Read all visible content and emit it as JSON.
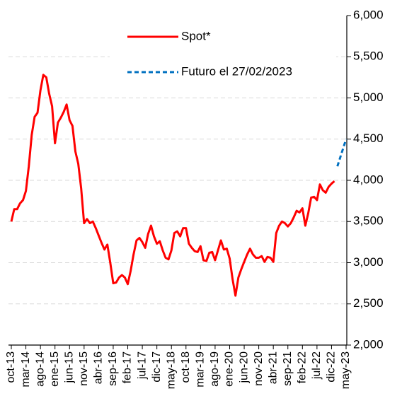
{
  "chart_data": {
    "type": "line",
    "categories": [
      "oct-13",
      null,
      null,
      null,
      null,
      "mar-14",
      null,
      null,
      null,
      null,
      "ago-14",
      null,
      null,
      null,
      null,
      "ene-15",
      null,
      null,
      null,
      null,
      "jun-15",
      null,
      null,
      null,
      null,
      "nov-15",
      null,
      null,
      null,
      null,
      "abr-16",
      null,
      null,
      null,
      null,
      "sep-16",
      null,
      null,
      null,
      null,
      "feb-17",
      null,
      null,
      null,
      null,
      "jul-17",
      null,
      null,
      null,
      null,
      "dic-17",
      null,
      null,
      null,
      null,
      "may-18",
      null,
      null,
      null,
      null,
      "oct-18",
      null,
      null,
      null,
      null,
      "mar-19",
      null,
      null,
      null,
      null,
      "ago-19",
      null,
      null,
      null,
      null,
      "ene-20",
      null,
      null,
      null,
      null,
      "jun-20",
      null,
      null,
      null,
      null,
      "nov-20",
      null,
      null,
      null,
      null,
      "abr-21",
      null,
      null,
      null,
      null,
      "sep-21",
      null,
      null,
      null,
      null,
      "feb-22",
      null,
      null,
      null,
      null,
      "jul-22",
      null,
      null,
      null,
      null,
      "dic-22",
      null,
      null,
      null,
      null,
      "may-23"
    ],
    "series": [
      {
        "name": "Spot*",
        "color": "#ff0000",
        "dashed": false,
        "values": [
          3500,
          3650,
          3650,
          3720,
          3760,
          3870,
          4170,
          4550,
          4770,
          4820,
          5090,
          5280,
          5250,
          5050,
          4900,
          4450,
          4700,
          4760,
          4830,
          4920,
          4730,
          4660,
          4350,
          4200,
          3900,
          3480,
          3530,
          3480,
          3500,
          3420,
          3330,
          3240,
          3160,
          3220,
          3000,
          2750,
          2760,
          2820,
          2850,
          2820,
          2740,
          2900,
          3100,
          3270,
          3300,
          3250,
          3180,
          3350,
          3450,
          3320,
          3230,
          3260,
          3150,
          3060,
          3040,
          3150,
          3360,
          3380,
          3320,
          3420,
          3420,
          3230,
          3180,
          3140,
          3130,
          3200,
          3030,
          3020,
          3120,
          3130,
          3030,
          3150,
          3270,
          3160,
          3170,
          3050,
          2800,
          2600,
          2820,
          2920,
          3010,
          3100,
          3170,
          3100,
          3060,
          3060,
          3080,
          3010,
          3070,
          3060,
          3010,
          3360,
          3450,
          3500,
          3480,
          3440,
          3480,
          3550,
          3630,
          3610,
          3660,
          3450,
          3600,
          3790,
          3800,
          3760,
          3950,
          3880,
          3850,
          3920,
          3960,
          3990,
          null,
          null,
          null,
          null
        ]
      },
      {
        "name": "Futuro el 27/02/2023",
        "color": "#0070c0",
        "dashed": true,
        "values": [
          null,
          null,
          null,
          null,
          null,
          null,
          null,
          null,
          null,
          null,
          null,
          null,
          null,
          null,
          null,
          null,
          null,
          null,
          null,
          null,
          null,
          null,
          null,
          null,
          null,
          null,
          null,
          null,
          null,
          null,
          null,
          null,
          null,
          null,
          null,
          null,
          null,
          null,
          null,
          null,
          null,
          null,
          null,
          null,
          null,
          null,
          null,
          null,
          null,
          null,
          null,
          null,
          null,
          null,
          null,
          null,
          null,
          null,
          null,
          null,
          null,
          null,
          null,
          null,
          null,
          null,
          null,
          null,
          null,
          null,
          null,
          null,
          null,
          null,
          null,
          null,
          null,
          null,
          null,
          null,
          null,
          null,
          null,
          null,
          null,
          null,
          null,
          null,
          null,
          null,
          null,
          null,
          null,
          null,
          null,
          null,
          null,
          null,
          null,
          null,
          null,
          null,
          null,
          null,
          null,
          null,
          null,
          null,
          null,
          null,
          null,
          null,
          4170,
          4280,
          4390,
          4500
        ]
      }
    ],
    "ylim": [
      2000,
      6000
    ],
    "yticks": [
      {
        "value": 2000,
        "label": "2,000"
      },
      {
        "value": 2500,
        "label": "2,500"
      },
      {
        "value": 3000,
        "label": "3,000"
      },
      {
        "value": 3500,
        "label": "3,500"
      },
      {
        "value": 4000,
        "label": "4,000"
      },
      {
        "value": 4500,
        "label": "4,500"
      },
      {
        "value": 5000,
        "label": "5,000"
      },
      {
        "value": 5500,
        "label": "5,500"
      },
      {
        "value": 6000,
        "label": "6,000"
      }
    ],
    "grid": true,
    "y_axis_side": "right",
    "legend": "top"
  }
}
